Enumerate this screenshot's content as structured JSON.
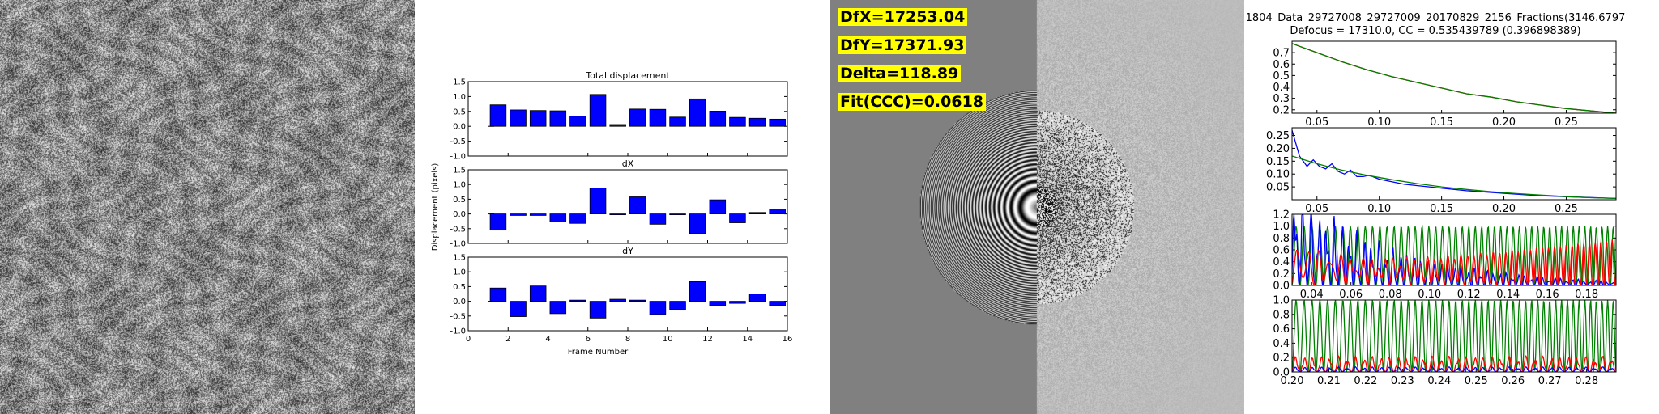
{
  "motion_plot": {
    "ylabel": "Displacement (pixels)",
    "xlabel": "Frame Number"
  },
  "ctf_stats": {
    "dfx": "DfX=17253.04",
    "dfy": "DfY=17371.93",
    "delta": "Delta=118.89",
    "fit": "Fit(CCC)=0.0618"
  },
  "ctf_fit_header": {
    "title": "1804_Data_29727008_29727009_20170829_2156_Fractions(3146.6797",
    "subtitle": "Defocus = 17310.0, CC = 0.535439789 (0.396898389)"
  },
  "colors": {
    "bar": "#0000ff",
    "blue": "#0000ff",
    "green": "#008000",
    "red": "#ff0000",
    "highlight": "#ffff00"
  },
  "chart_data": [
    {
      "type": "bar",
      "title": "Total displacement",
      "x": [
        1.5,
        2.5,
        3.5,
        4.5,
        5.5,
        6.5,
        7.5,
        8.5,
        9.5,
        10.5,
        11.5,
        12.5,
        13.5,
        14.5,
        15.5
      ],
      "values": [
        0.72,
        0.55,
        0.53,
        0.52,
        0.34,
        1.07,
        0.06,
        0.58,
        0.57,
        0.31,
        0.92,
        0.51,
        0.3,
        0.27,
        0.24
      ],
      "ylim": [
        -1.0,
        1.5
      ],
      "yticks": [
        "1.5",
        "1.0",
        "0.5",
        "0.0",
        "-0.5",
        "-1.0"
      ],
      "xlim": [
        0,
        16
      ],
      "xticks": [
        "0",
        "2",
        "4",
        "6",
        "8",
        "10",
        "12",
        "14",
        "16"
      ]
    },
    {
      "type": "bar",
      "title": "dX",
      "x": [
        1.5,
        2.5,
        3.5,
        4.5,
        5.5,
        6.5,
        7.5,
        8.5,
        9.5,
        10.5,
        11.5,
        12.5,
        13.5,
        14.5,
        15.5
      ],
      "values": [
        -0.55,
        -0.05,
        -0.05,
        -0.27,
        -0.32,
        0.88,
        -0.02,
        0.58,
        -0.35,
        -0.02,
        -0.67,
        0.48,
        -0.3,
        0.05,
        0.17
      ],
      "ylim": [
        -1.0,
        1.5
      ],
      "yticks": [
        "1.5",
        "1.0",
        "0.5",
        "0.0",
        "-0.5",
        "-1.0"
      ],
      "xlim": [
        0,
        16
      ],
      "xticks": [
        "0",
        "2",
        "4",
        "6",
        "8",
        "10",
        "12",
        "14",
        "16"
      ]
    },
    {
      "type": "bar",
      "title": "dY",
      "x": [
        1.5,
        2.5,
        3.5,
        4.5,
        5.5,
        6.5,
        7.5,
        8.5,
        9.5,
        10.5,
        11.5,
        12.5,
        13.5,
        14.5,
        15.5
      ],
      "values": [
        0.45,
        -0.52,
        0.52,
        -0.42,
        0.04,
        -0.57,
        0.07,
        0.04,
        -0.45,
        -0.28,
        0.67,
        -0.15,
        -0.07,
        0.25,
        -0.15
      ],
      "ylim": [
        -1.0,
        1.5
      ],
      "yticks": [
        "1.5",
        "1.0",
        "0.5",
        "0.0",
        "-0.5",
        "-1.0"
      ],
      "xlim": [
        0,
        16
      ],
      "xticks": [
        "0",
        "2",
        "4",
        "6",
        "8",
        "10",
        "12",
        "14",
        "16"
      ]
    },
    {
      "type": "line",
      "xlim": [
        0.03,
        0.29
      ],
      "ylim": [
        0.17,
        0.8
      ],
      "xticks": [
        0.05,
        0.1,
        0.15,
        0.2,
        0.25
      ],
      "xtick_labels": [
        "0.05",
        "0.10",
        "0.15",
        "0.20",
        "0.25"
      ],
      "yticks": [
        0.2,
        0.3,
        0.4,
        0.5,
        0.6,
        0.7
      ],
      "ytick_labels": [
        "0.2",
        "0.3",
        "0.4",
        "0.5",
        "0.6",
        "0.7"
      ],
      "series": [
        {
          "color": "red",
          "x": [
            0.03,
            0.05,
            0.07,
            0.09,
            0.11,
            0.13,
            0.15,
            0.17,
            0.19,
            0.21,
            0.23,
            0.25,
            0.27,
            0.29
          ],
          "y": [
            0.78,
            0.7,
            0.62,
            0.55,
            0.49,
            0.44,
            0.39,
            0.34,
            0.31,
            0.27,
            0.24,
            0.21,
            0.19,
            0.17
          ]
        },
        {
          "color": "green",
          "x": [
            0.03,
            0.05,
            0.07,
            0.09,
            0.11,
            0.13,
            0.15,
            0.17,
            0.19,
            0.21,
            0.23,
            0.25,
            0.27,
            0.29
          ],
          "y": [
            0.78,
            0.7,
            0.62,
            0.55,
            0.49,
            0.44,
            0.39,
            0.34,
            0.31,
            0.27,
            0.24,
            0.21,
            0.19,
            0.17
          ]
        }
      ]
    },
    {
      "type": "line",
      "xlim": [
        0.03,
        0.29
      ],
      "ylim": [
        0,
        0.28
      ],
      "xticks": [
        0.05,
        0.1,
        0.15,
        0.2,
        0.25
      ],
      "xtick_labels": [
        "0.05",
        "0.10",
        "0.15",
        "0.20",
        "0.25"
      ],
      "yticks": [
        0.05,
        0.1,
        0.15,
        0.2,
        0.25
      ],
      "ytick_labels": [
        "0.05",
        "0.10",
        "0.15",
        "0.20",
        "0.25"
      ],
      "series": [
        {
          "color": "blue",
          "x": [
            0.03,
            0.036,
            0.042,
            0.047,
            0.052,
            0.057,
            0.062,
            0.067,
            0.072,
            0.077,
            0.082,
            0.087,
            0.092,
            0.1,
            0.11,
            0.12,
            0.13,
            0.15,
            0.17,
            0.2,
            0.23,
            0.26,
            0.29
          ],
          "y": [
            0.27,
            0.17,
            0.13,
            0.155,
            0.13,
            0.12,
            0.14,
            0.11,
            0.1,
            0.115,
            0.09,
            0.09,
            0.095,
            0.08,
            0.07,
            0.06,
            0.055,
            0.045,
            0.035,
            0.025,
            0.015,
            0.01,
            0.005
          ]
        },
        {
          "color": "green",
          "x": [
            0.03,
            0.05,
            0.07,
            0.09,
            0.11,
            0.13,
            0.15,
            0.17,
            0.19,
            0.21,
            0.23,
            0.25,
            0.27,
            0.29
          ],
          "y": [
            0.17,
            0.14,
            0.115,
            0.095,
            0.078,
            0.063,
            0.05,
            0.04,
            0.031,
            0.024,
            0.018,
            0.012,
            0.008,
            0.005
          ]
        }
      ]
    },
    {
      "type": "line",
      "xlim": [
        0.03,
        0.195
      ],
      "ylim": [
        0,
        1.2
      ],
      "xticks": [
        0.04,
        0.06,
        0.08,
        0.1,
        0.12,
        0.14,
        0.16,
        0.18
      ],
      "xtick_labels": [
        "0.04",
        "0.06",
        "0.08",
        "0.10",
        "0.12",
        "0.14",
        "0.16",
        "0.18"
      ],
      "yticks": [
        0,
        0.2,
        0.4,
        0.6,
        0.8,
        1.0,
        1.2
      ],
      "ytick_labels": [
        "0.0",
        "0.2",
        "0.4",
        "0.6",
        "0.8",
        "1.0",
        "1.2"
      ],
      "series": [
        {
          "color": "green",
          "model": "ctf",
          "amp": 1.0
        },
        {
          "color": "blue",
          "model": "decay",
          "amp": 1.3
        },
        {
          "color": "red",
          "model": "rise",
          "amp": 0.55
        }
      ]
    },
    {
      "type": "line",
      "xlim": [
        0.2,
        0.288
      ],
      "ylim": [
        0,
        1.0
      ],
      "xticks": [
        0.2,
        0.21,
        0.22,
        0.23,
        0.24,
        0.25,
        0.26,
        0.27,
        0.28
      ],
      "xtick_labels": [
        "0.20",
        "0.21",
        "0.22",
        "0.23",
        "0.24",
        "0.25",
        "0.26",
        "0.27",
        "0.28"
      ],
      "yticks": [
        0,
        0.2,
        0.4,
        0.6,
        0.8,
        1.0
      ],
      "ytick_labels": [
        "0.0",
        "0.2",
        "0.4",
        "0.6",
        "0.8",
        "1.0"
      ],
      "series": [
        {
          "color": "green",
          "model": "ctf",
          "amp": 1.0
        },
        {
          "color": "red",
          "model": "noise",
          "amp": 0.22
        },
        {
          "color": "blue",
          "model": "noise",
          "amp": 0.07
        }
      ]
    }
  ]
}
